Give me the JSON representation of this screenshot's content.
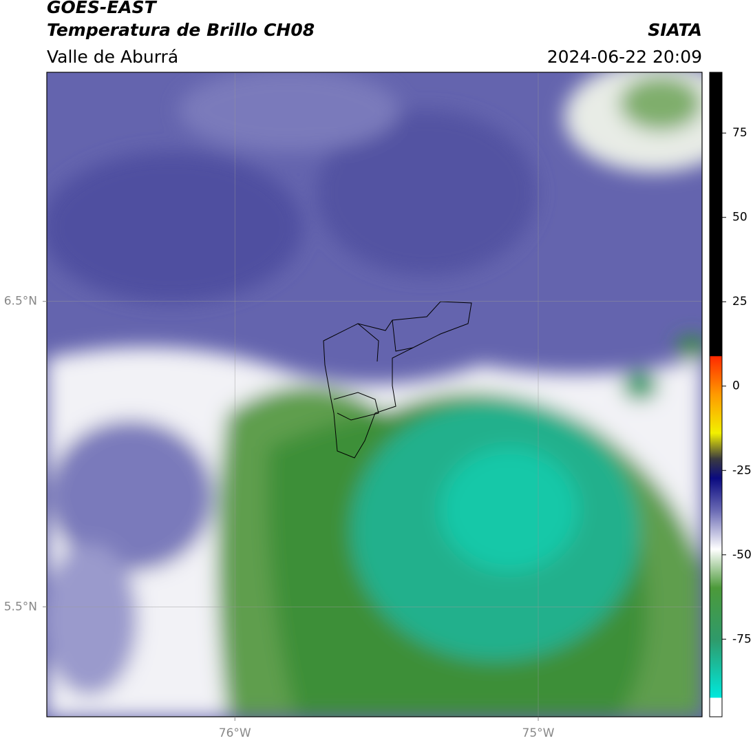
{
  "header": {
    "title": "GOES-EAST",
    "subtitle": "Temperatura de Brillo CH08",
    "region": "Valle de Aburrá",
    "source": "SIATA",
    "timestamp": "2024-06-22 20:09"
  },
  "map": {
    "xlim": [
      -76.62,
      -74.46
    ],
    "ylim": [
      5.14,
      7.25
    ],
    "xticks": [
      {
        "value": -76,
        "label": "76°W"
      },
      {
        "value": -75,
        "label": "75°W"
      }
    ],
    "yticks": [
      {
        "value": 6.5,
        "label": "6.5°N"
      },
      {
        "value": 5.5,
        "label": "5.5°N"
      }
    ]
  },
  "colorbar": {
    "lim": [
      -98,
      93
    ],
    "ticks": [
      75,
      50,
      25,
      0,
      -25,
      -50,
      -75
    ]
  }
}
